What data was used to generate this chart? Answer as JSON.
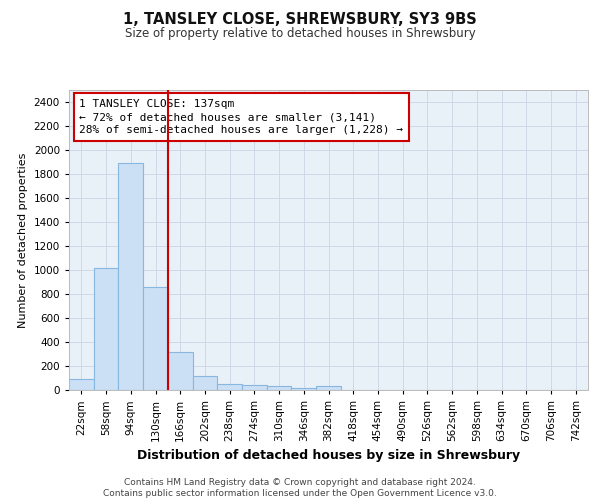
{
  "title": "1, TANSLEY CLOSE, SHREWSBURY, SY3 9BS",
  "subtitle": "Size of property relative to detached houses in Shrewsbury",
  "xlabel": "Distribution of detached houses by size in Shrewsbury",
  "ylabel": "Number of detached properties",
  "bar_labels": [
    "22sqm",
    "58sqm",
    "94sqm",
    "130sqm",
    "166sqm",
    "202sqm",
    "238sqm",
    "274sqm",
    "310sqm",
    "346sqm",
    "382sqm",
    "418sqm",
    "454sqm",
    "490sqm",
    "526sqm",
    "562sqm",
    "598sqm",
    "634sqm",
    "670sqm",
    "706sqm",
    "742sqm"
  ],
  "bar_heights": [
    90,
    1020,
    1890,
    855,
    320,
    115,
    50,
    40,
    30,
    20,
    30,
    0,
    0,
    0,
    0,
    0,
    0,
    0,
    0,
    0,
    0
  ],
  "bar_color": "#cce0f5",
  "bar_edge_color": "#88b8e0",
  "grid_color": "#d0d8e8",
  "plot_bg_color": "#e8f0f8",
  "fig_bg_color": "#ffffff",
  "annotation_text": "1 TANSLEY CLOSE: 137sqm\n← 72% of detached houses are smaller (3,141)\n28% of semi-detached houses are larger (1,228) →",
  "annotation_box_facecolor": "#ffffff",
  "annotation_box_edgecolor": "#cc0000",
  "vline_x": 3.5,
  "vline_color": "#cc0000",
  "ylim": [
    0,
    2500
  ],
  "yticks": [
    0,
    200,
    400,
    600,
    800,
    1000,
    1200,
    1400,
    1600,
    1800,
    2000,
    2200,
    2400
  ],
  "footer_text": "Contains HM Land Registry data © Crown copyright and database right 2024.\nContains public sector information licensed under the Open Government Licence v3.0.",
  "title_fontsize": 10.5,
  "subtitle_fontsize": 8.5,
  "xlabel_fontsize": 9,
  "ylabel_fontsize": 8,
  "tick_fontsize": 7.5,
  "annotation_fontsize": 8,
  "footer_fontsize": 6.5
}
